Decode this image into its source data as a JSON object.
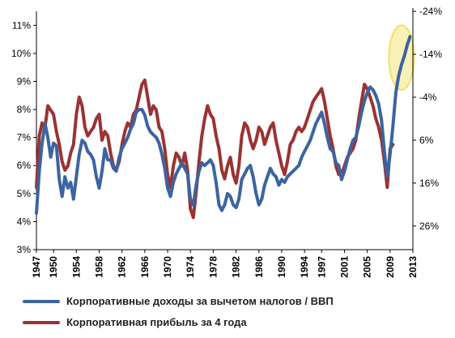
{
  "chart_data": {
    "type": "line",
    "xlabel": "",
    "ylabel": "",
    "xlim": [
      1947,
      2013
    ],
    "ylim_left": [
      3,
      11.5
    ],
    "ylim_right": [
      31.5,
      -24
    ],
    "right_axis_inverted": true,
    "grid": false,
    "legend_position": "bottom",
    "x_tick_labels": [
      "1947",
      "1950",
      "1954",
      "1958",
      "1962",
      "1966",
      "1970",
      "1974",
      "1978",
      "1982",
      "1986",
      "1990",
      "1994",
      "1997",
      "2001",
      "2005",
      "2009",
      "2013"
    ],
    "x_ticks": [
      1947,
      1950,
      1954,
      1958,
      1962,
      1966,
      1970,
      1974,
      1978,
      1982,
      1986,
      1990,
      1994,
      1997,
      2001,
      2005,
      2009,
      2013
    ],
    "left_ticks": [
      3,
      4,
      5,
      6,
      7,
      8,
      9,
      10,
      11
    ],
    "left_tick_labels": [
      "3%",
      "4%",
      "5%",
      "6%",
      "7%",
      "8%",
      "9%",
      "10%",
      "11%"
    ],
    "right_ticks": [
      -24,
      -14,
      -4,
      6,
      16,
      26
    ],
    "right_tick_labels": [
      "-24%",
      "-14%",
      "-4%",
      "6%",
      "16%",
      "26%"
    ],
    "series": [
      {
        "name": "Корпоративные доходы за вычетом налогов / ВВП",
        "axis": "left",
        "color": "#3b64a0",
        "points": [
          [
            1947.0,
            4.3
          ],
          [
            1947.5,
            5.8
          ],
          [
            1948.0,
            6.8
          ],
          [
            1948.5,
            7.5
          ],
          [
            1949.0,
            7.0
          ],
          [
            1949.5,
            6.3
          ],
          [
            1950.0,
            6.8
          ],
          [
            1950.5,
            6.7
          ],
          [
            1951.0,
            5.5
          ],
          [
            1951.5,
            4.9
          ],
          [
            1952.0,
            5.6
          ],
          [
            1952.5,
            5.2
          ],
          [
            1953.0,
            5.4
          ],
          [
            1953.5,
            4.8
          ],
          [
            1954.0,
            5.6
          ],
          [
            1954.5,
            6.4
          ],
          [
            1955.0,
            6.9
          ],
          [
            1955.5,
            6.8
          ],
          [
            1956.0,
            6.5
          ],
          [
            1956.5,
            6.4
          ],
          [
            1957.0,
            6.2
          ],
          [
            1957.5,
            5.6
          ],
          [
            1958.0,
            5.2
          ],
          [
            1958.5,
            5.8
          ],
          [
            1959.0,
            6.6
          ],
          [
            1959.5,
            6.2
          ],
          [
            1960.0,
            6.2
          ],
          [
            1960.5,
            5.9
          ],
          [
            1961.0,
            5.8
          ],
          [
            1961.5,
            6.3
          ],
          [
            1962.0,
            6.6
          ],
          [
            1962.5,
            6.8
          ],
          [
            1963.0,
            7.0
          ],
          [
            1963.5,
            7.3
          ],
          [
            1964.0,
            7.5
          ],
          [
            1964.5,
            7.9
          ],
          [
            1965.0,
            8.0
          ],
          [
            1965.5,
            8.0
          ],
          [
            1966.0,
            7.8
          ],
          [
            1966.5,
            7.4
          ],
          [
            1967.0,
            7.2
          ],
          [
            1967.5,
            7.1
          ],
          [
            1968.0,
            7.0
          ],
          [
            1968.5,
            6.8
          ],
          [
            1969.0,
            6.4
          ],
          [
            1969.5,
            5.9
          ],
          [
            1970.0,
            5.2
          ],
          [
            1970.5,
            4.9
          ],
          [
            1971.0,
            5.4
          ],
          [
            1971.5,
            5.7
          ],
          [
            1972.0,
            5.9
          ],
          [
            1972.5,
            6.1
          ],
          [
            1973.0,
            5.9
          ],
          [
            1973.5,
            5.7
          ],
          [
            1974.0,
            4.8
          ],
          [
            1974.5,
            4.6
          ],
          [
            1975.0,
            5.3
          ],
          [
            1975.5,
            5.8
          ],
          [
            1976.0,
            6.1
          ],
          [
            1976.5,
            6.0
          ],
          [
            1977.0,
            6.1
          ],
          [
            1977.5,
            6.2
          ],
          [
            1978.0,
            6.0
          ],
          [
            1978.5,
            5.4
          ],
          [
            1979.0,
            4.6
          ],
          [
            1979.5,
            4.4
          ],
          [
            1980.0,
            4.6
          ],
          [
            1980.5,
            5.0
          ],
          [
            1981.0,
            4.9
          ],
          [
            1981.5,
            4.6
          ],
          [
            1982.0,
            4.5
          ],
          [
            1982.5,
            4.8
          ],
          [
            1983.0,
            5.5
          ],
          [
            1983.5,
            5.7
          ],
          [
            1984.0,
            5.9
          ],
          [
            1984.5,
            6.0
          ],
          [
            1985.0,
            5.6
          ],
          [
            1985.5,
            5.0
          ],
          [
            1986.0,
            4.6
          ],
          [
            1986.5,
            4.8
          ],
          [
            1987.0,
            5.3
          ],
          [
            1987.5,
            5.6
          ],
          [
            1988.0,
            5.9
          ],
          [
            1988.5,
            5.7
          ],
          [
            1989.0,
            5.6
          ],
          [
            1989.5,
            5.3
          ],
          [
            1990.0,
            5.5
          ],
          [
            1990.5,
            5.4
          ],
          [
            1991.0,
            5.6
          ],
          [
            1991.5,
            5.7
          ],
          [
            1992.0,
            5.8
          ],
          [
            1992.5,
            5.9
          ],
          [
            1993.0,
            6.0
          ],
          [
            1993.5,
            6.3
          ],
          [
            1994.0,
            6.5
          ],
          [
            1994.5,
            6.7
          ],
          [
            1995.0,
            6.9
          ],
          [
            1995.5,
            7.2
          ],
          [
            1996.0,
            7.5
          ],
          [
            1996.5,
            7.7
          ],
          [
            1997.0,
            7.9
          ],
          [
            1997.5,
            7.5
          ],
          [
            1998.0,
            7.0
          ],
          [
            1998.5,
            6.6
          ],
          [
            1999.0,
            6.5
          ],
          [
            1999.5,
            6.1
          ],
          [
            2000.0,
            6.0
          ],
          [
            2000.5,
            5.5
          ],
          [
            2001.0,
            5.8
          ],
          [
            2001.5,
            6.2
          ],
          [
            2002.0,
            6.6
          ],
          [
            2002.5,
            6.9
          ],
          [
            2003.0,
            7.0
          ],
          [
            2003.5,
            7.4
          ],
          [
            2004.0,
            7.9
          ],
          [
            2004.5,
            8.3
          ],
          [
            2005.0,
            8.6
          ],
          [
            2005.5,
            8.8
          ],
          [
            2006.0,
            8.7
          ],
          [
            2006.5,
            8.5
          ],
          [
            2007.0,
            8.2
          ],
          [
            2007.5,
            7.6
          ],
          [
            2008.0,
            6.5
          ],
          [
            2008.5,
            5.6
          ],
          [
            2009.0,
            6.4
          ],
          [
            2009.5,
            7.4
          ],
          [
            2010.0,
            8.6
          ],
          [
            2010.5,
            9.2
          ],
          [
            2011.0,
            9.6
          ],
          [
            2011.5,
            9.9
          ],
          [
            2012.0,
            10.3
          ],
          [
            2012.5,
            10.6
          ]
        ]
      },
      {
        "name": "Корпоративная прибыль за 4 года",
        "axis": "right",
        "color": "#9b3233",
        "points": [
          [
            1947.0,
            17.0
          ],
          [
            1947.5,
            5.0
          ],
          [
            1948.0,
            2.0
          ],
          [
            1948.5,
            3.0
          ],
          [
            1949.0,
            -2.0
          ],
          [
            1949.5,
            -1.0
          ],
          [
            1950.0,
            0.0
          ],
          [
            1950.5,
            4.0
          ],
          [
            1951.0,
            7.0
          ],
          [
            1951.5,
            11.0
          ],
          [
            1952.0,
            13.0
          ],
          [
            1952.5,
            12.0
          ],
          [
            1953.0,
            9.0
          ],
          [
            1953.5,
            7.0
          ],
          [
            1954.0,
            0.0
          ],
          [
            1954.5,
            -4.0
          ],
          [
            1955.0,
            -2.0
          ],
          [
            1955.5,
            3.0
          ],
          [
            1956.0,
            5.0
          ],
          [
            1956.5,
            4.0
          ],
          [
            1957.0,
            3.0
          ],
          [
            1957.5,
            1.0
          ],
          [
            1958.0,
            0.0
          ],
          [
            1958.5,
            6.0
          ],
          [
            1959.0,
            4.0
          ],
          [
            1959.5,
            5.0
          ],
          [
            1960.0,
            9.0
          ],
          [
            1960.5,
            12.0
          ],
          [
            1961.0,
            13.0
          ],
          [
            1961.5,
            11.0
          ],
          [
            1962.0,
            7.0
          ],
          [
            1962.5,
            4.0
          ],
          [
            1963.0,
            2.0
          ],
          [
            1963.5,
            3.0
          ],
          [
            1964.0,
            0.0
          ],
          [
            1964.5,
            -1.0
          ],
          [
            1965.0,
            -4.0
          ],
          [
            1965.5,
            -7.0
          ],
          [
            1966.0,
            -8.0
          ],
          [
            1966.5,
            -4.0
          ],
          [
            1967.0,
            0.0
          ],
          [
            1967.5,
            -2.0
          ],
          [
            1968.0,
            -1.0
          ],
          [
            1968.5,
            3.0
          ],
          [
            1969.0,
            4.0
          ],
          [
            1969.5,
            8.0
          ],
          [
            1970.0,
            14.0
          ],
          [
            1970.5,
            17.0
          ],
          [
            1971.0,
            12.0
          ],
          [
            1971.5,
            9.0
          ],
          [
            1972.0,
            10.0
          ],
          [
            1972.5,
            12.0
          ],
          [
            1973.0,
            9.0
          ],
          [
            1973.5,
            13.0
          ],
          [
            1974.0,
            22.0
          ],
          [
            1974.5,
            24.0
          ],
          [
            1975.0,
            18.0
          ],
          [
            1975.5,
            11.0
          ],
          [
            1976.0,
            5.0
          ],
          [
            1976.5,
            1.0
          ],
          [
            1977.0,
            -2.0
          ],
          [
            1977.5,
            0.0
          ],
          [
            1978.0,
            1.0
          ],
          [
            1978.5,
            5.0
          ],
          [
            1979.0,
            8.0
          ],
          [
            1979.5,
            13.0
          ],
          [
            1980.0,
            15.0
          ],
          [
            1980.5,
            12.0
          ],
          [
            1981.0,
            10.0
          ],
          [
            1981.5,
            14.0
          ],
          [
            1982.0,
            16.0
          ],
          [
            1982.5,
            12.0
          ],
          [
            1983.0,
            5.0
          ],
          [
            1983.5,
            2.0
          ],
          [
            1984.0,
            3.0
          ],
          [
            1984.5,
            6.0
          ],
          [
            1985.0,
            8.0
          ],
          [
            1985.5,
            6.0
          ],
          [
            1986.0,
            3.0
          ],
          [
            1986.5,
            4.0
          ],
          [
            1987.0,
            7.0
          ],
          [
            1987.5,
            5.0
          ],
          [
            1988.0,
            3.0
          ],
          [
            1988.5,
            2.0
          ],
          [
            1989.0,
            6.0
          ],
          [
            1989.5,
            9.0
          ],
          [
            1990.0,
            12.0
          ],
          [
            1990.5,
            14.0
          ],
          [
            1991.0,
            11.0
          ],
          [
            1991.5,
            7.0
          ],
          [
            1992.0,
            6.0
          ],
          [
            1992.5,
            4.0
          ],
          [
            1993.0,
            3.0
          ],
          [
            1993.5,
            4.0
          ],
          [
            1994.0,
            3.0
          ],
          [
            1994.5,
            1.0
          ],
          [
            1995.0,
            -1.0
          ],
          [
            1995.5,
            -3.0
          ],
          [
            1996.0,
            -4.0
          ],
          [
            1996.5,
            -5.0
          ],
          [
            1997.0,
            -6.0
          ],
          [
            1997.5,
            -3.0
          ],
          [
            1998.0,
            1.0
          ],
          [
            1998.5,
            5.0
          ],
          [
            1999.0,
            8.0
          ],
          [
            1999.5,
            12.0
          ],
          [
            2000.0,
            14.0
          ],
          [
            2000.5,
            14.0
          ],
          [
            2001.0,
            12.0
          ],
          [
            2001.5,
            10.0
          ],
          [
            2002.0,
            9.0
          ],
          [
            2002.5,
            8.0
          ],
          [
            2003.0,
            6.0
          ],
          [
            2003.5,
            1.0
          ],
          [
            2004.0,
            -3.0
          ],
          [
            2004.5,
            -7.0
          ],
          [
            2005.0,
            -6.0
          ],
          [
            2005.5,
            -4.0
          ],
          [
            2006.0,
            -2.0
          ],
          [
            2006.5,
            1.0
          ],
          [
            2007.0,
            3.0
          ],
          [
            2007.5,
            6.0
          ],
          [
            2008.0,
            11.0
          ],
          [
            2008.5,
            17.0
          ],
          [
            2009.0,
            8.0
          ],
          [
            2009.5,
            7.0
          ]
        ]
      }
    ],
    "annotations": [
      {
        "type": "highlight-ellipse",
        "color": "#f2e15f",
        "x_range": [
          2008.8,
          2013.2
        ],
        "y_range_left": [
          8.7,
          11.0
        ]
      }
    ]
  }
}
